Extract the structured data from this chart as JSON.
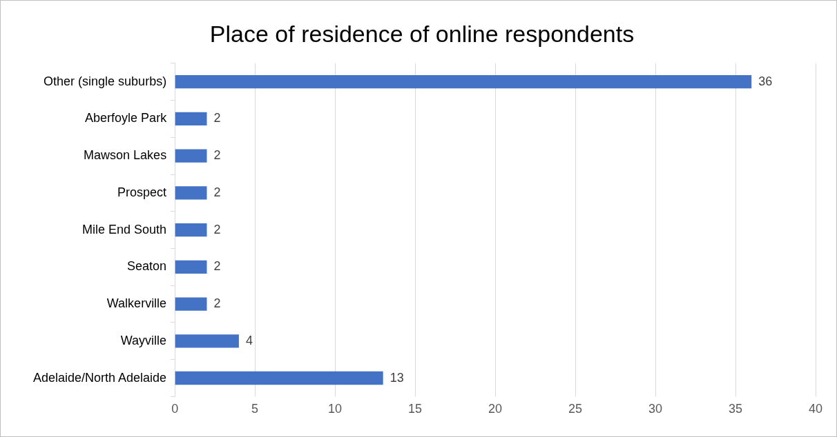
{
  "chart_data": {
    "type": "bar",
    "orientation": "horizontal",
    "title": "Place of residence of online respondents",
    "categories": [
      "Other (single suburbs)",
      "Aberfoyle Park",
      "Mawson Lakes",
      "Prospect",
      "Mile End South",
      "Seaton",
      "Walkerville",
      "Wayville",
      "Adelaide/North Adelaide"
    ],
    "values": [
      36,
      2,
      2,
      2,
      2,
      2,
      2,
      4,
      13
    ],
    "color": "#4472c4",
    "xlim": [
      0,
      40
    ],
    "xticks": [
      0,
      5,
      10,
      15,
      20,
      25,
      30,
      35,
      40
    ],
    "grid": "x",
    "data_labels": true
  }
}
